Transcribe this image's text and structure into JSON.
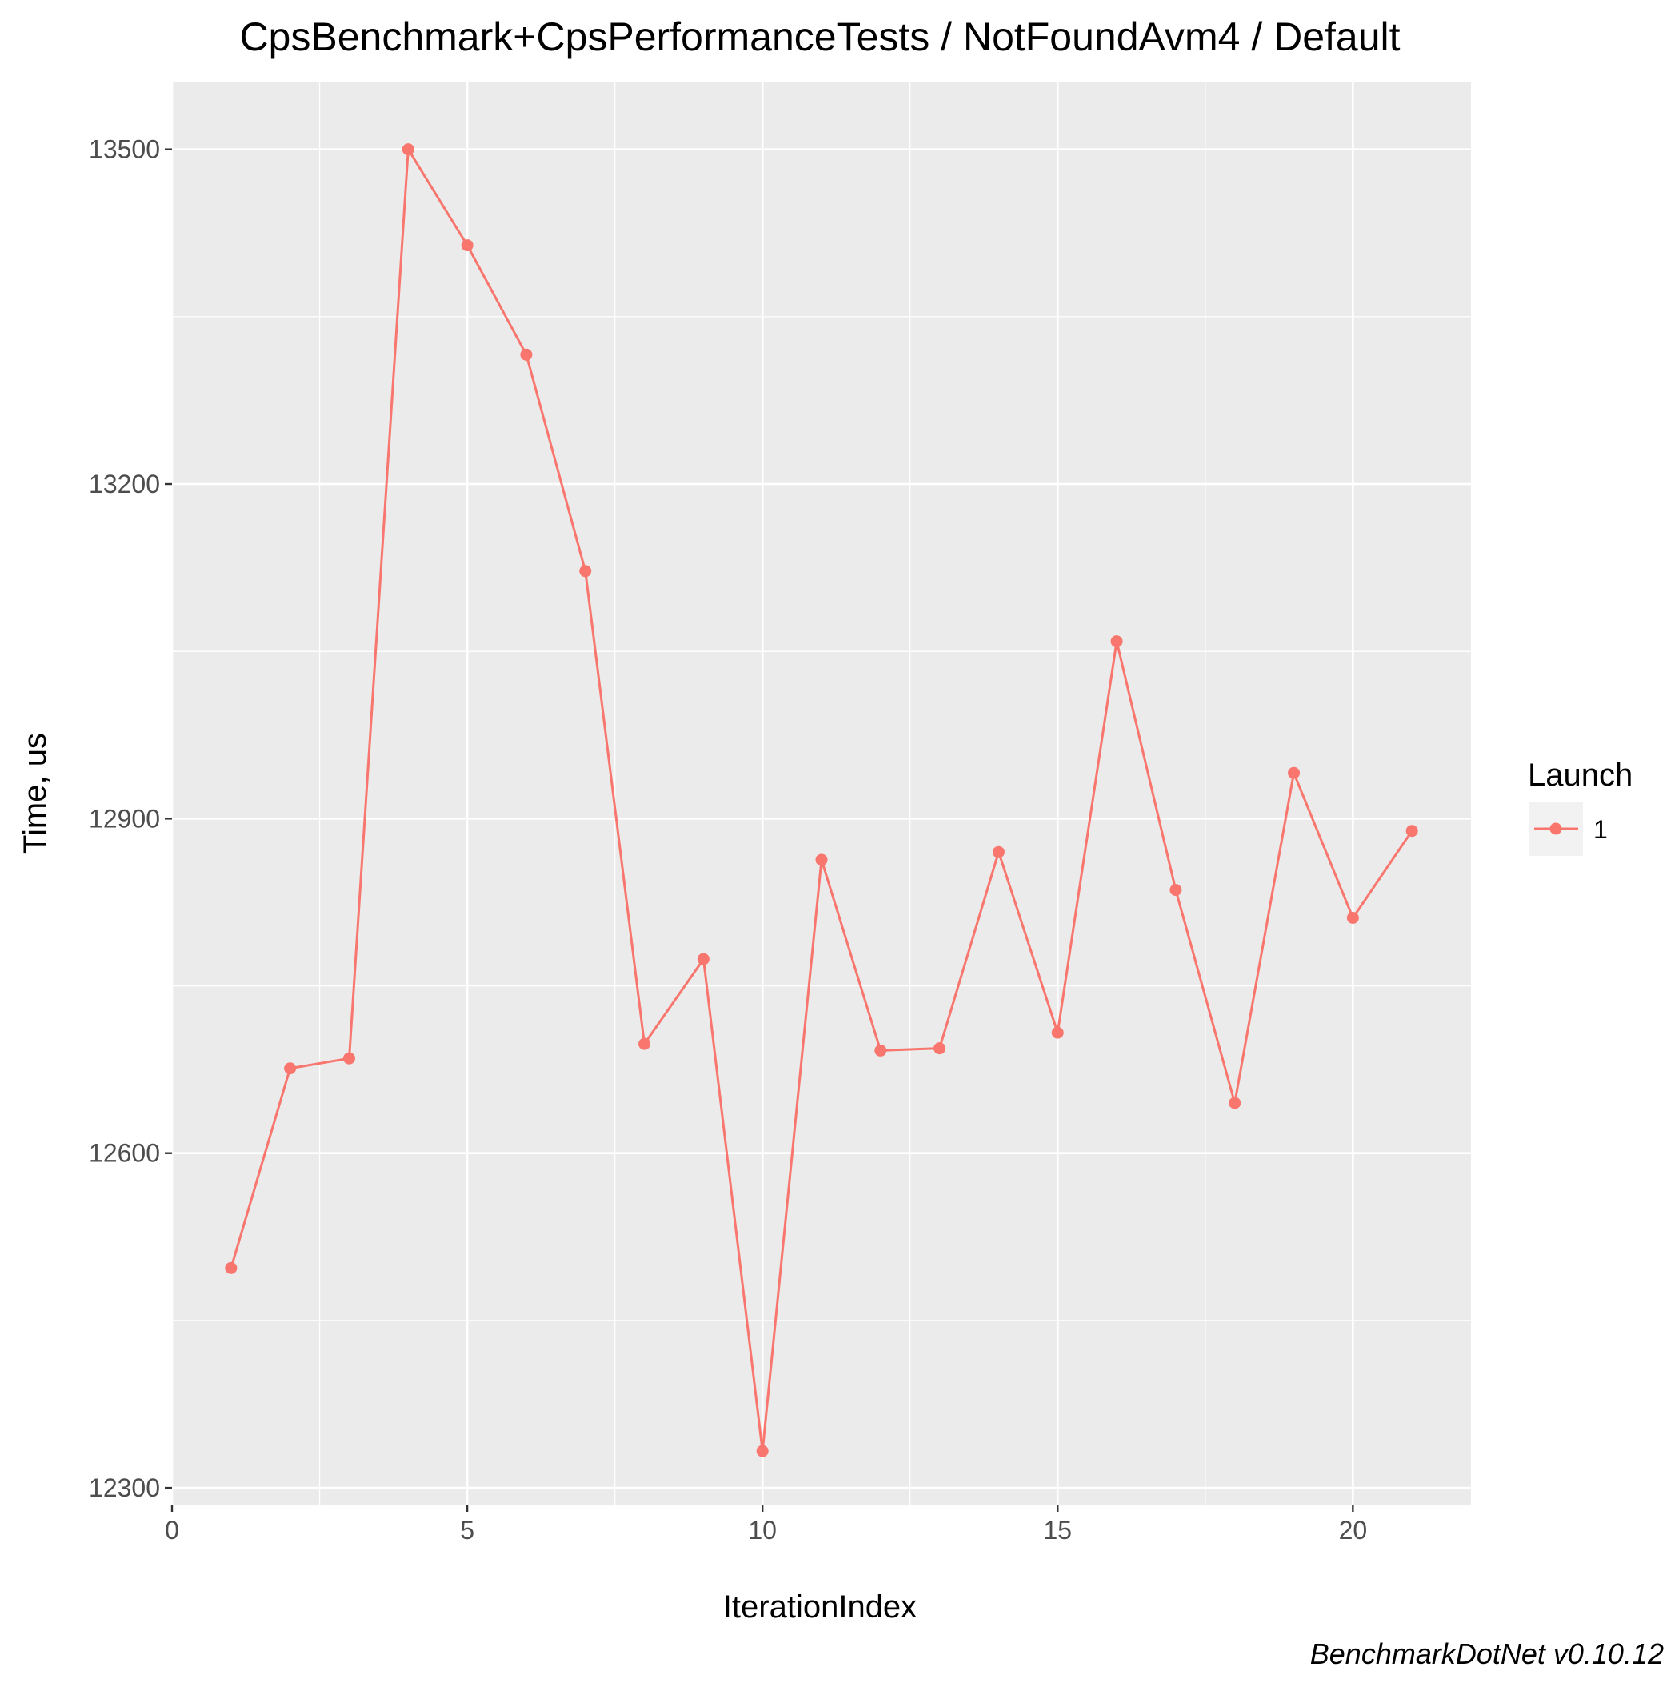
{
  "chart_data": {
    "type": "line",
    "title": "CpsBenchmark+CpsPerformanceTests / NotFoundAvm4 / Default",
    "xlabel": "IterationIndex",
    "ylabel": "Time, us",
    "caption": "BenchmarkDotNet v0.10.12",
    "xlim": [
      0,
      22
    ],
    "ylim": [
      12285,
      13560
    ],
    "x_ticks": [
      0,
      5,
      10,
      15,
      20
    ],
    "x_minor_ticks": [
      2.5,
      7.5,
      12.5,
      17.5
    ],
    "y_ticks": [
      12300,
      12600,
      12900,
      13200,
      13500
    ],
    "y_minor_ticks": [
      12450,
      12750,
      13050,
      13350
    ],
    "grid": true,
    "legend": {
      "title": "Launch",
      "placement": "right",
      "entries": [
        "1"
      ]
    },
    "colors": {
      "series": "#F8766D",
      "panel": "#EBEBEB",
      "grid": "#FFFFFF"
    },
    "series": [
      {
        "name": "1",
        "x": [
          1,
          2,
          3,
          4,
          5,
          6,
          7,
          8,
          9,
          10,
          11,
          12,
          13,
          14,
          15,
          16,
          17,
          18,
          19,
          20,
          21
        ],
        "values": [
          12497,
          12676,
          12685,
          13500,
          13414,
          13316,
          13122,
          12698,
          12774,
          12333,
          12863,
          12692,
          12694,
          12870,
          12708,
          13059,
          12836,
          12645,
          12941,
          12811,
          12889
        ]
      }
    ]
  }
}
